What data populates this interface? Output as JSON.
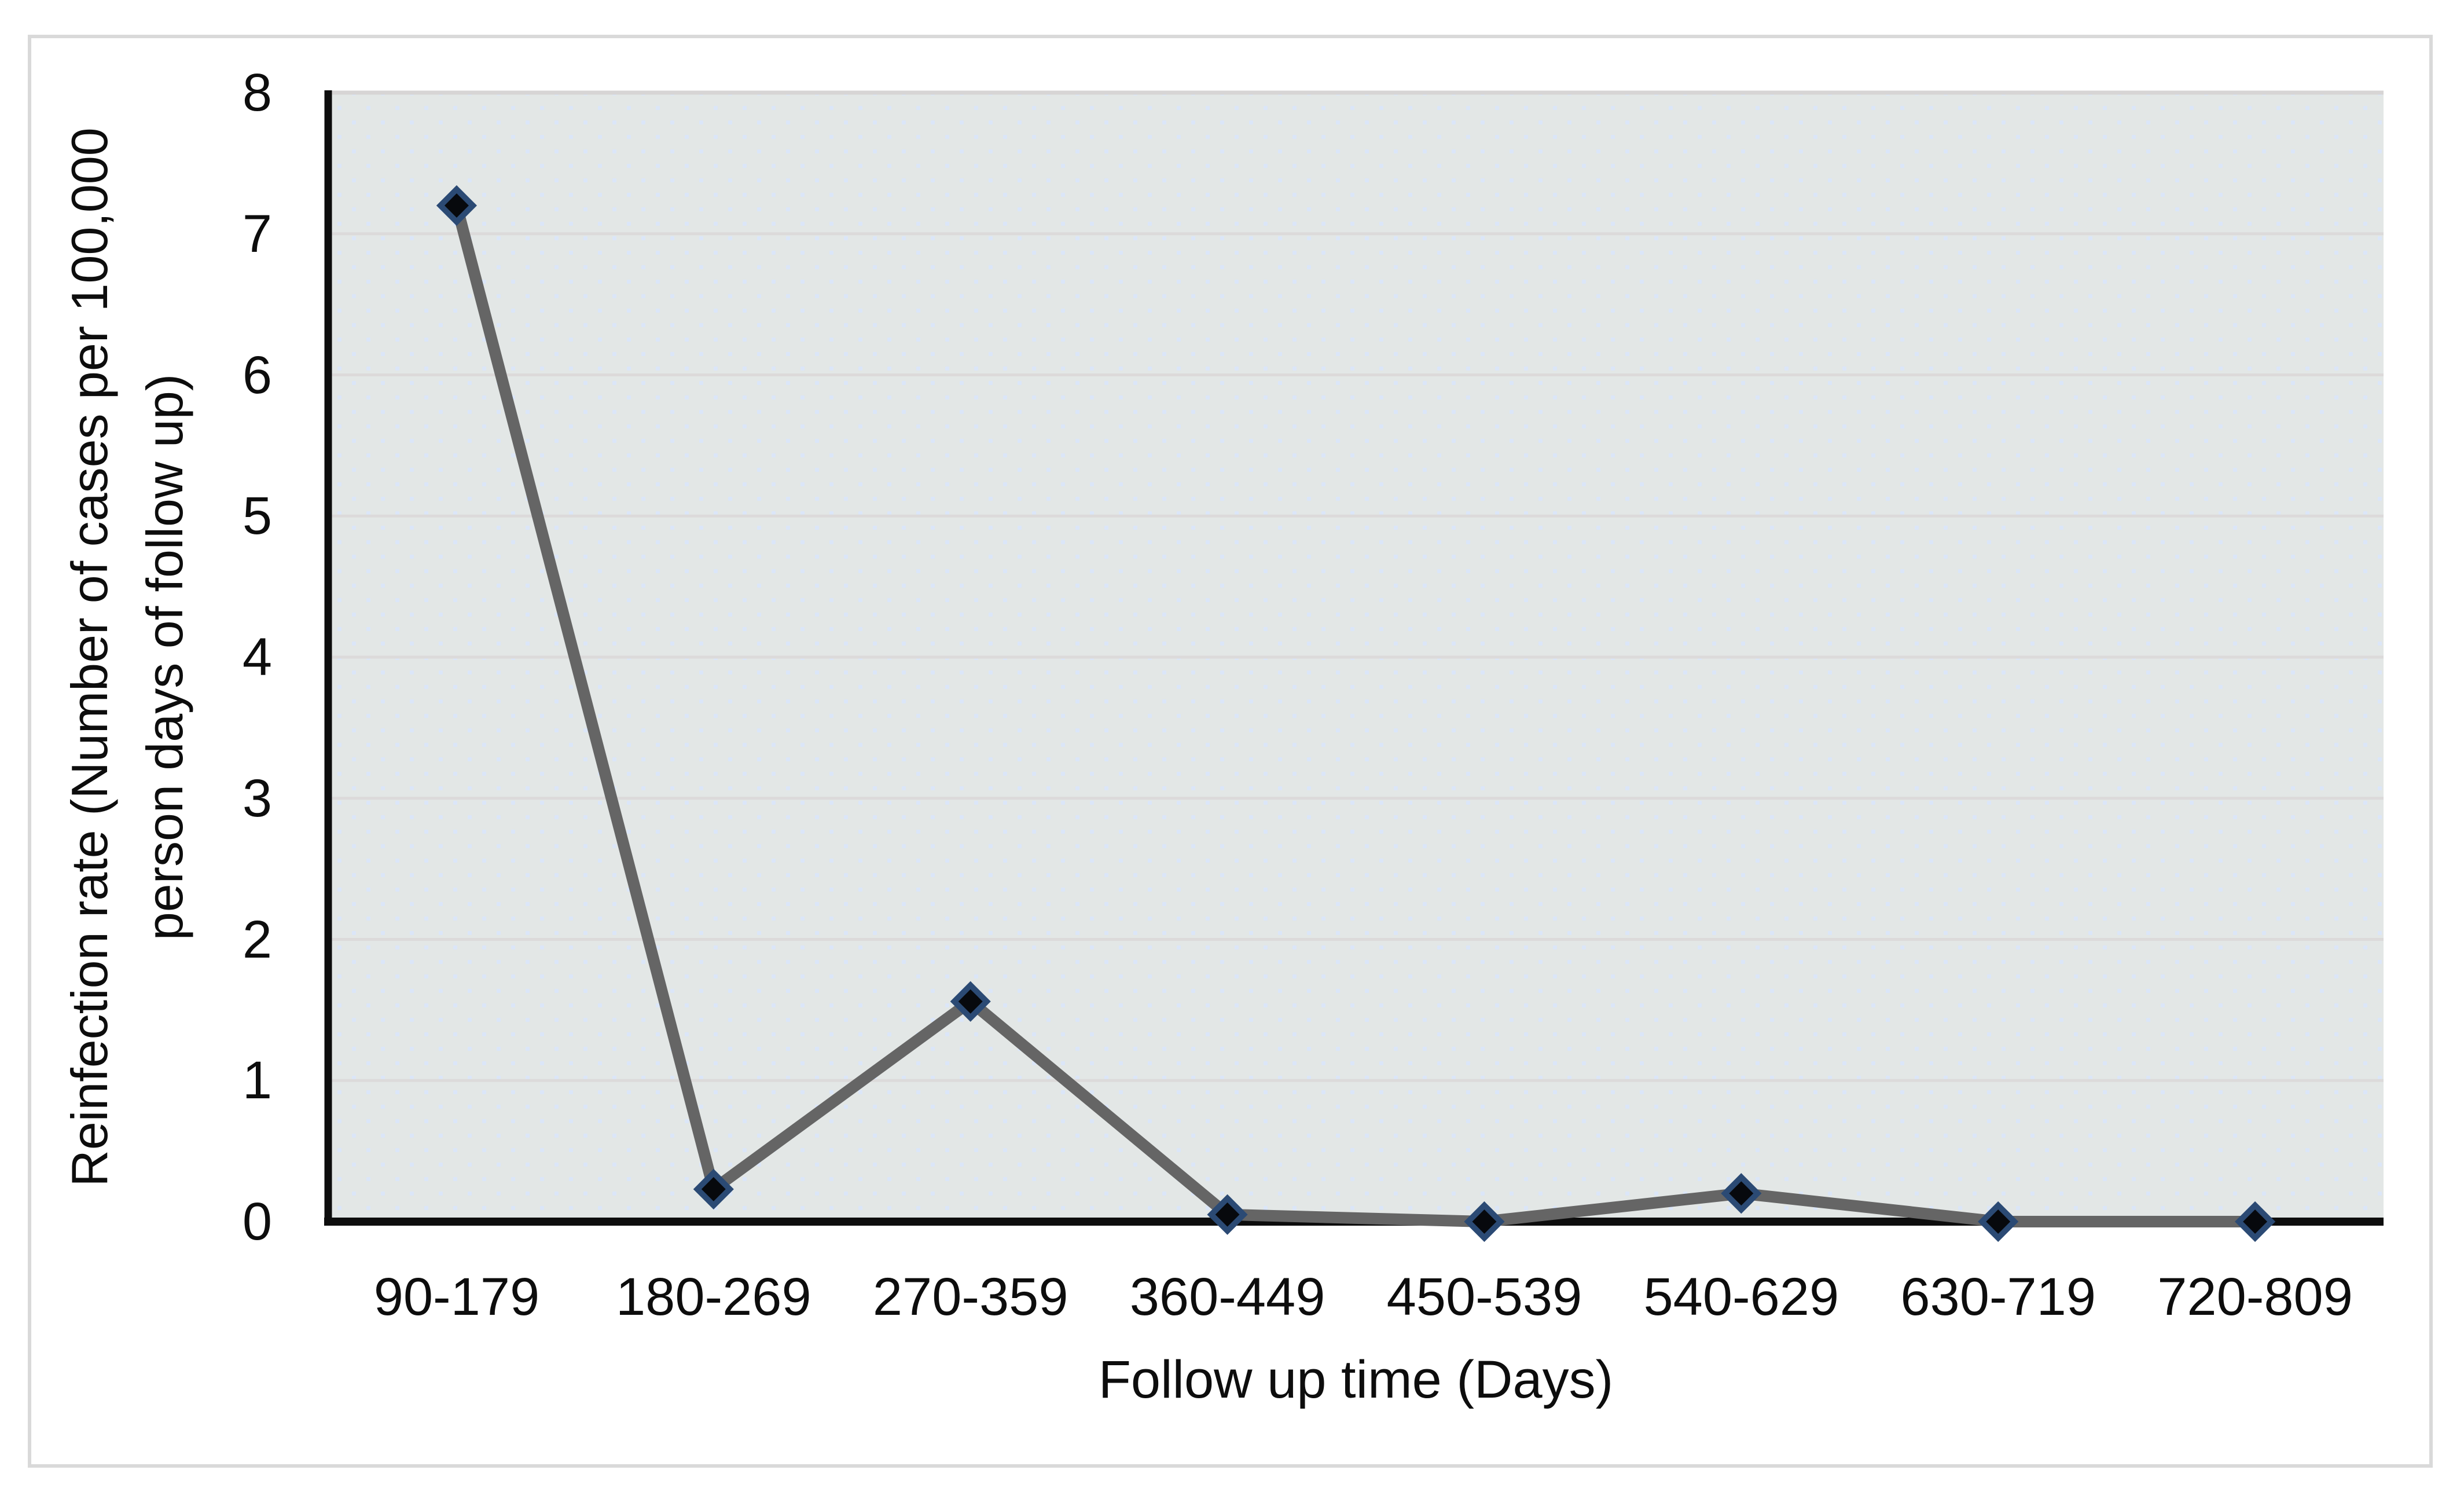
{
  "chart_data": {
    "type": "line",
    "categories": [
      "90-179",
      "180-269",
      "270-359",
      "360-449",
      "450-539",
      "540-629",
      "630-719",
      "720-809"
    ],
    "values": [
      7.2,
      0.23,
      1.56,
      0.05,
      0,
      0.2,
      0,
      0
    ],
    "series": [
      {
        "name": "Reinfection rate",
        "values": [
          7.2,
          0.23,
          1.56,
          0.05,
          0,
          0.2,
          0,
          0
        ]
      }
    ],
    "title": "",
    "xlabel": "Follow up time (Days)",
    "ylabel": "Reinfection rate (Number of cases per 100,000 person days of follow up)",
    "ylabel_line1": "Reinfection rate (Number of cases per 100,000",
    "ylabel_line2": "person days of follow up)",
    "ylim": [
      0,
      8
    ],
    "yticks": [
      0,
      1,
      2,
      3,
      4,
      5,
      6,
      7,
      8
    ],
    "grid": "horizontal",
    "legend": "none",
    "marker": "diamond",
    "colors": {
      "line": "#656565",
      "marker_fill": "#07090d",
      "marker_border": "#2b4a74",
      "plot_bg": "#e3e7e6",
      "plot_dots": "#dbe6f8",
      "gridline": "#dcdada",
      "axis": "#0d0d0d",
      "text": "#0d0d0d",
      "frame_border": "#d9d9d9",
      "page_bg": "#ffffff"
    }
  }
}
